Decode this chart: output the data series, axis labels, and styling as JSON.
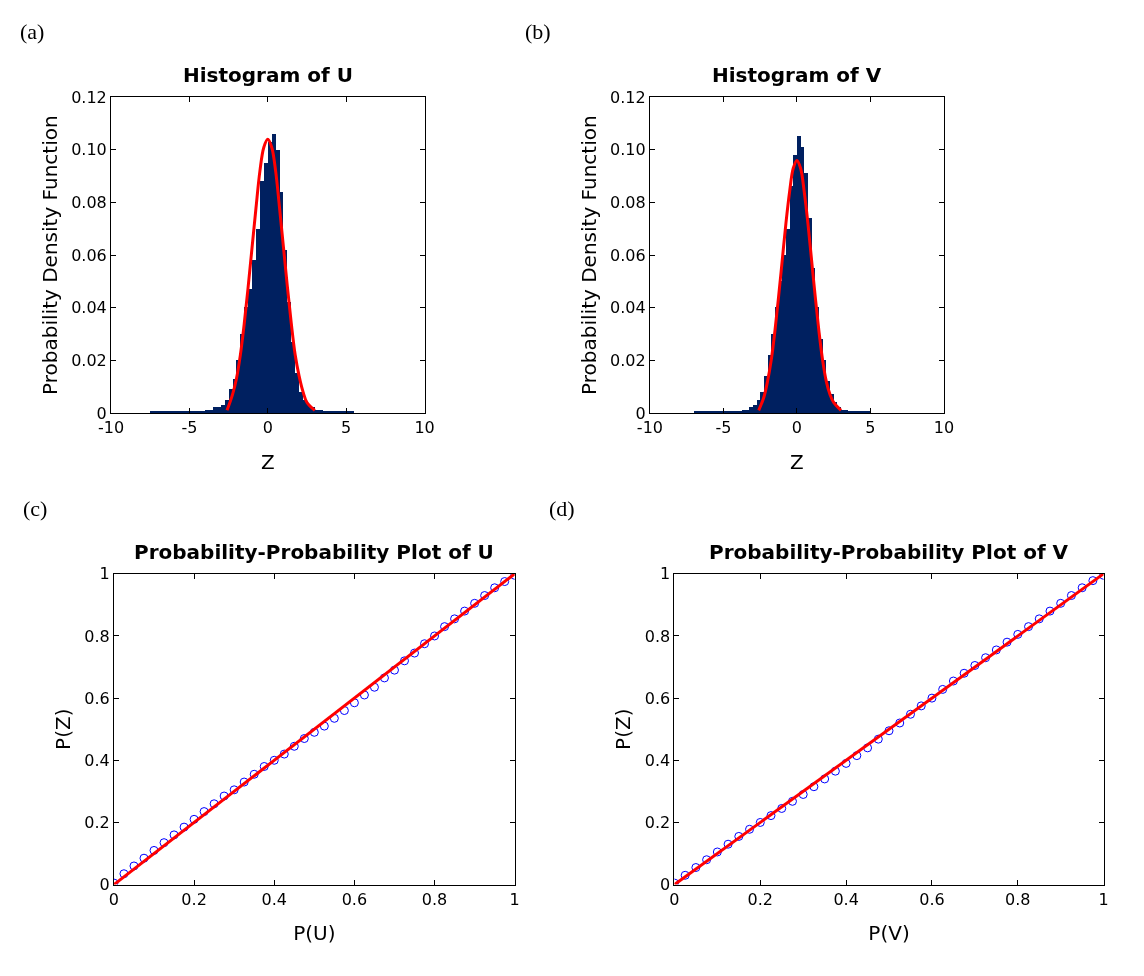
{
  "chart_data": [
    {
      "type": "histogram",
      "title": "Histogram of U",
      "xlabel": "Z",
      "ylabel": "Probability Density Function",
      "annotations": [
        "(a)"
      ],
      "color": "#002060",
      "bins": [
        -7.5,
        -4,
        -3.75,
        -3.5,
        -3.25,
        -3,
        -2.75,
        -2.5,
        -2.25,
        -2,
        -1.75,
        -1.5,
        -1.25,
        -1,
        -0.75,
        -0.5,
        -0.25,
        0,
        0.25,
        0.5,
        0.75,
        1,
        1.25,
        1.5,
        1.75,
        2,
        2.25,
        2.5,
        2.75,
        3,
        3.25,
        3.5,
        3.75,
        4,
        5.5
      ],
      "values": [
        0.0005,
        0.001,
        0.001,
        0.002,
        0.002,
        0.003,
        0.005,
        0.009,
        0.013,
        0.02,
        0.03,
        0.04,
        0.047,
        0.058,
        0.07,
        0.088,
        0.095,
        0.103,
        0.106,
        0.1,
        0.084,
        0.062,
        0.042,
        0.027,
        0.015,
        0.008,
        0.005,
        0.003,
        0.002,
        0.001,
        0.001,
        0.0005,
        0.0005,
        0.0005
      ],
      "series": [
        {
          "type": "line",
          "color": "#ff0000",
          "x": [
            -2.6,
            -2.25,
            -2,
            -1.75,
            -1.5,
            -1.25,
            -1,
            -0.75,
            -0.5,
            -0.25,
            0,
            0.25,
            0.5,
            0.75,
            1,
            1.25,
            1.5,
            1.75,
            2,
            2.25,
            2.5,
            3
          ],
          "values": [
            0.001,
            0.007,
            0.013,
            0.022,
            0.034,
            0.048,
            0.063,
            0.078,
            0.092,
            0.101,
            0.104,
            0.101,
            0.092,
            0.078,
            0.063,
            0.048,
            0.034,
            0.022,
            0.014,
            0.008,
            0.004,
            0.001
          ]
        }
      ],
      "xlim": [
        -10,
        10
      ],
      "xticks": [
        -10,
        -5,
        0,
        5,
        10
      ],
      "ylim": [
        0,
        0.12
      ],
      "yticks": [
        0,
        0.02,
        0.04,
        0.06,
        0.08,
        {
          "value": 0.1,
          "label": "0.10"
        },
        0.12
      ]
    },
    {
      "type": "histogram",
      "title": "Histogram of V",
      "xlabel": "Z",
      "ylabel": "Probability Density Function",
      "annotations": [
        "(b)"
      ],
      "color": "#002060",
      "bins": [
        -7,
        -4,
        -3.75,
        -3.5,
        -3.25,
        -3,
        -2.75,
        -2.5,
        -2.25,
        -2,
        -1.75,
        -1.5,
        -1.25,
        -1,
        -0.75,
        -0.5,
        -0.25,
        0,
        0.25,
        0.5,
        0.75,
        1,
        1.25,
        1.5,
        1.75,
        2,
        2.25,
        2.5,
        2.75,
        3,
        3.25,
        3.5,
        3.75,
        4,
        5
      ],
      "values": [
        0.0005,
        0.0005,
        0.001,
        0.001,
        0.002,
        0.003,
        0.005,
        0.008,
        0.014,
        0.022,
        0.03,
        0.04,
        0.05,
        0.06,
        0.07,
        0.086,
        0.098,
        0.105,
        0.101,
        0.091,
        0.074,
        0.055,
        0.04,
        0.028,
        0.02,
        0.012,
        0.007,
        0.004,
        0.002,
        0.001,
        0.001,
        0.0005,
        0.0005,
        0.0005
      ],
      "series": [
        {
          "type": "line",
          "color": "#ff0000",
          "x": [
            -2.6,
            -2.25,
            -2,
            -1.75,
            -1.5,
            -1.25,
            -1,
            -0.75,
            -0.5,
            -0.25,
            0,
            0.25,
            0.5,
            0.75,
            1,
            1.25,
            1.5,
            1.75,
            2,
            2.25,
            2.5,
            3
          ],
          "values": [
            0.001,
            0.006,
            0.012,
            0.02,
            0.031,
            0.044,
            0.058,
            0.072,
            0.084,
            0.093,
            0.096,
            0.093,
            0.084,
            0.072,
            0.058,
            0.044,
            0.031,
            0.02,
            0.012,
            0.007,
            0.004,
            0.001
          ]
        }
      ],
      "xlim": [
        -10,
        10
      ],
      "xticks": [
        -10,
        -5,
        0,
        5,
        10
      ],
      "ylim": [
        0,
        0.12
      ],
      "yticks": [
        0,
        0.02,
        0.04,
        0.06,
        0.08,
        {
          "value": 0.1,
          "label": "0.10"
        },
        0.12
      ]
    },
    {
      "type": "scatter",
      "title": "Probability-Probability Plot of U",
      "xlabel": "P(U)",
      "ylabel": "P(Z)",
      "annotations": [
        "(c)"
      ],
      "series": [
        {
          "type": "scatter",
          "color": "#0000ff",
          "marker": "circle",
          "x": [
            0,
            0.025,
            0.05,
            0.075,
            0.1,
            0.125,
            0.15,
            0.175,
            0.2,
            0.225,
            0.25,
            0.275,
            0.3,
            0.325,
            0.35,
            0.375,
            0.4,
            0.425,
            0.45,
            0.475,
            0.5,
            0.525,
            0.55,
            0.575,
            0.6,
            0.625,
            0.65,
            0.675,
            0.7,
            0.725,
            0.75,
            0.775,
            0.8,
            0.825,
            0.85,
            0.875,
            0.9,
            0.925,
            0.95,
            0.975,
            1
          ],
          "values": [
            0.005,
            0.035,
            0.06,
            0.085,
            0.11,
            0.135,
            0.16,
            0.185,
            0.21,
            0.235,
            0.26,
            0.285,
            0.305,
            0.33,
            0.355,
            0.38,
            0.4,
            0.42,
            0.445,
            0.47,
            0.49,
            0.51,
            0.535,
            0.56,
            0.585,
            0.61,
            0.635,
            0.665,
            0.69,
            0.72,
            0.745,
            0.775,
            0.8,
            0.83,
            0.855,
            0.88,
            0.905,
            0.93,
            0.955,
            0.975,
            0.995
          ]
        },
        {
          "type": "line",
          "color": "#ff0000",
          "x": [
            0,
            1
          ],
          "values": [
            0,
            1
          ]
        }
      ],
      "xlim": [
        0,
        1
      ],
      "xticks": [
        0,
        0.2,
        0.4,
        0.6,
        0.8,
        1
      ],
      "ylim": [
        0,
        1
      ],
      "yticks": [
        0,
        0.2,
        0.4,
        0.6,
        0.8,
        1
      ]
    },
    {
      "type": "scatter",
      "title": "Probability-Probability Plot of V",
      "xlabel": "P(V)",
      "ylabel": "P(Z)",
      "annotations": [
        "(d)"
      ],
      "series": [
        {
          "type": "scatter",
          "color": "#0000ff",
          "marker": "circle",
          "x": [
            0,
            0.025,
            0.05,
            0.075,
            0.1,
            0.125,
            0.15,
            0.175,
            0.2,
            0.225,
            0.25,
            0.275,
            0.3,
            0.325,
            0.35,
            0.375,
            0.4,
            0.425,
            0.45,
            0.475,
            0.5,
            0.525,
            0.55,
            0.575,
            0.6,
            0.625,
            0.65,
            0.675,
            0.7,
            0.725,
            0.75,
            0.775,
            0.8,
            0.825,
            0.85,
            0.875,
            0.9,
            0.925,
            0.95,
            0.975,
            1
          ],
          "values": [
            0.005,
            0.03,
            0.055,
            0.08,
            0.105,
            0.13,
            0.155,
            0.178,
            0.2,
            0.222,
            0.245,
            0.268,
            0.29,
            0.315,
            0.34,
            0.365,
            0.39,
            0.415,
            0.44,
            0.468,
            0.495,
            0.52,
            0.548,
            0.575,
            0.6,
            0.628,
            0.655,
            0.68,
            0.705,
            0.73,
            0.755,
            0.78,
            0.805,
            0.83,
            0.855,
            0.88,
            0.905,
            0.93,
            0.955,
            0.978,
            0.995
          ]
        },
        {
          "type": "line",
          "color": "#ff0000",
          "x": [
            0,
            1
          ],
          "values": [
            0,
            1
          ]
        }
      ],
      "xlim": [
        0,
        1
      ],
      "xticks": [
        0,
        0.2,
        0.4,
        0.6,
        0.8,
        1
      ],
      "ylim": [
        0,
        1
      ],
      "yticks": [
        0,
        0.2,
        0.4,
        0.6,
        0.8,
        1
      ]
    }
  ]
}
